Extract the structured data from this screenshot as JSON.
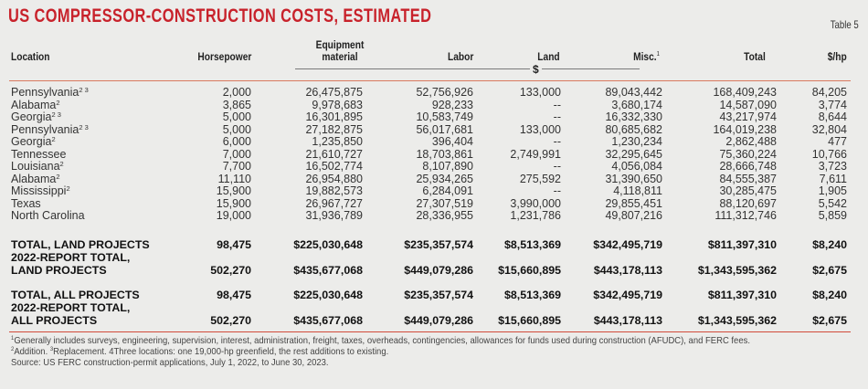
{
  "title": "US COMPRESSOR-CONSTRUCTION COSTS, ESTIMATED",
  "table_number": "Table 5",
  "headers": {
    "location": "Location",
    "horsepower": "Horsepower",
    "equipment_line1": "Equipment",
    "equipment_line2": "material",
    "labor": "Labor",
    "land": "Land",
    "misc": "Misc.",
    "misc_note": "1",
    "total": "Total",
    "per_hp": "$/hp",
    "unit": "$"
  },
  "colors": {
    "title": "#c8222b",
    "rule": "#d9795f"
  },
  "rows": [
    {
      "location": "Pennsylvania",
      "notes": "2 3",
      "horsepower": "2,000",
      "equipment": "26,475,875",
      "labor": "52,756,926",
      "land": "133,000",
      "misc": "89,043,442",
      "total": "168,409,243",
      "per_hp": "84,205"
    },
    {
      "location": "Alabama",
      "notes": "2",
      "horsepower": "3,865",
      "equipment": "9,978,683",
      "labor": "928,233",
      "land": "--",
      "misc": "3,680,174",
      "total": "14,587,090",
      "per_hp": "3,774"
    },
    {
      "location": "Georgia",
      "notes": "2 3",
      "horsepower": "5,000",
      "equipment": "16,301,895",
      "labor": "10,583,749",
      "land": "--",
      "misc": "16,332,330",
      "total": "43,217,974",
      "per_hp": "8,644"
    },
    {
      "location": "Pennsylvania",
      "notes": "2 3",
      "horsepower": "5,000",
      "equipment": "27,182,875",
      "labor": "56,017,681",
      "land": "133,000",
      "misc": "80,685,682",
      "total": "164,019,238",
      "per_hp": "32,804"
    },
    {
      "location": "Georgia",
      "notes": "2",
      "horsepower": "6,000",
      "equipment": "1,235,850",
      "labor": "396,404",
      "land": "--",
      "misc": "1,230,234",
      "total": "2,862,488",
      "per_hp": "477"
    },
    {
      "location": "Tennessee",
      "notes": "",
      "horsepower": "7,000",
      "equipment": "21,610,727",
      "labor": "18,703,861",
      "land": "2,749,991",
      "misc": "32,295,645",
      "total": "75,360,224",
      "per_hp": "10,766"
    },
    {
      "location": "Louisiana",
      "notes": "2",
      "horsepower": "7,700",
      "equipment": "16,502,774",
      "labor": "8,107,890",
      "land": "--",
      "misc": "4,056,084",
      "total": "28,666,748",
      "per_hp": "3,723"
    },
    {
      "location": "Alabama",
      "notes": "2",
      "horsepower": "11,110",
      "equipment": "26,954,880",
      "labor": "25,934,265",
      "land": "275,592",
      "misc": "31,390,650",
      "total": "84,555,387",
      "per_hp": "7,611"
    },
    {
      "location": "Mississippi",
      "notes": "2",
      "horsepower": "15,900",
      "equipment": "19,882,573",
      "labor": "6,284,091",
      "land": "--",
      "misc": "4,118,811",
      "total": "30,285,475",
      "per_hp": "1,905"
    },
    {
      "location": "Texas",
      "notes": "",
      "horsepower": "15,900",
      "equipment": "26,967,727",
      "labor": "27,307,519",
      "land": "3,990,000",
      "misc": "29,855,451",
      "total": "88,120,697",
      "per_hp": "5,542"
    },
    {
      "location": "North Carolina",
      "notes": "",
      "horsepower": "19,000",
      "equipment": "31,936,789",
      "labor": "28,336,955",
      "land": "1,231,786",
      "misc": "49,807,216",
      "total": "111,312,746",
      "per_hp": "5,859"
    }
  ],
  "totals": [
    {
      "label1": "TOTAL, LAND PROJECTS",
      "label2": "",
      "horsepower": "98,475",
      "equipment": "$225,030,648",
      "labor": "$235,357,574",
      "land": "$8,513,369",
      "misc": "$342,495,719",
      "total": "$811,397,310",
      "per_hp": "$8,240"
    },
    {
      "label1": "2022-REPORT TOTAL,",
      "label2": "LAND PROJECTS",
      "horsepower": "502,270",
      "equipment": "$435,677,068",
      "labor": "$449,079,286",
      "land": "$15,660,895",
      "misc": "$443,178,113",
      "total": "$1,343,595,362",
      "per_hp": "$2,675"
    },
    {
      "label1": "TOTAL, ALL PROJECTS",
      "label2": "",
      "horsepower": "98,475",
      "equipment": "$225,030,648",
      "labor": "$235,357,574",
      "land": "$8,513,369",
      "misc": "$342,495,719",
      "total": "$811,397,310",
      "per_hp": "$8,240"
    },
    {
      "label1": "2022-REPORT TOTAL,",
      "label2": "ALL PROJECTS",
      "horsepower": "502,270",
      "equipment": "$435,677,068",
      "labor": "$449,079,286",
      "land": "$15,660,895",
      "misc": "$443,178,113",
      "total": "$1,343,595,362",
      "per_hp": "$2,675"
    }
  ],
  "footnotes": [
    {
      "mark": "1",
      "text": "Generally includes surveys, engineering, supervision, interest, administration, freight, taxes, overheads, contingencies, allowances for funds used during construction (AFUDC), and FERC fees."
    },
    {
      "mark": "2",
      "text": "Addition. ",
      "mark2": "3",
      "text2": "Replacement. 4Three locations: one 19,000-hp greenfield, the rest additions to existing."
    },
    {
      "mark": "",
      "text": "Source: US FERC construction-permit applications, July 1, 2022, to June 30, 2023."
    }
  ]
}
